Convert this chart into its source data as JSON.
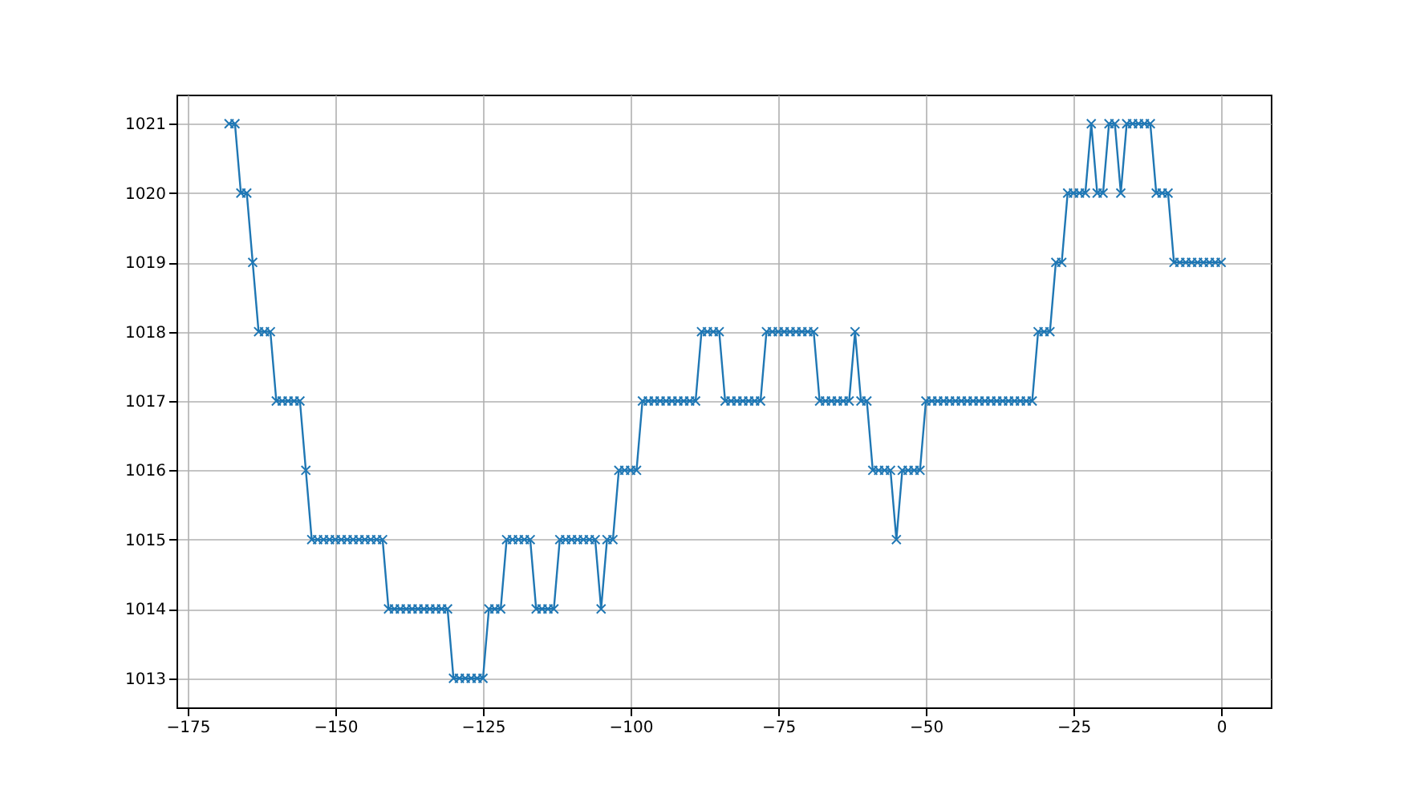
{
  "chart_data": {
    "type": "line",
    "x": [
      -168,
      -167,
      -166,
      -165,
      -164,
      -163,
      -162,
      -161,
      -160,
      -159,
      -158,
      -157,
      -156,
      -155,
      -154,
      -153,
      -152,
      -151,
      -150,
      -149,
      -148,
      -147,
      -146,
      -145,
      -144,
      -143,
      -142,
      -141,
      -140,
      -139,
      -138,
      -137,
      -136,
      -135,
      -134,
      -133,
      -132,
      -131,
      -130,
      -129,
      -128,
      -127,
      -126,
      -125,
      -124,
      -123,
      -122,
      -121,
      -120,
      -119,
      -118,
      -117,
      -116,
      -115,
      -114,
      -113,
      -112,
      -111,
      -110,
      -109,
      -108,
      -107,
      -106,
      -105,
      -104,
      -103,
      -102,
      -101,
      -100,
      -99,
      -98,
      -97,
      -96,
      -95,
      -94,
      -93,
      -92,
      -91,
      -90,
      -89,
      -88,
      -87,
      -86,
      -85,
      -84,
      -83,
      -82,
      -81,
      -80,
      -79,
      -78,
      -77,
      -76,
      -75,
      -74,
      -73,
      -72,
      -71,
      -70,
      -69,
      -68,
      -67,
      -66,
      -65,
      -64,
      -63,
      -62,
      -61,
      -60,
      -59,
      -58,
      -57,
      -56,
      -55,
      -54,
      -53,
      -52,
      -51,
      -50,
      -49,
      -48,
      -47,
      -46,
      -45,
      -44,
      -43,
      -42,
      -41,
      -40,
      -39,
      -38,
      -37,
      -36,
      -35,
      -34,
      -33,
      -32,
      -31,
      -30,
      -29,
      -28,
      -27,
      -26,
      -25,
      -24,
      -23,
      -22,
      -21,
      -20,
      -19,
      -18,
      -17,
      -16,
      -15,
      -14,
      -13,
      -12,
      -11,
      -10,
      -9,
      -8,
      -7,
      -6,
      -5,
      -4,
      -3,
      -2,
      -1,
      0
    ],
    "series": [
      {
        "color": "#1f77b4",
        "values": [
          1021,
          1021,
          1020,
          1020,
          1019,
          1018,
          1018,
          1018,
          1017,
          1017,
          1017,
          1017,
          1017,
          1016,
          1015,
          1015,
          1015,
          1015,
          1015,
          1015,
          1015,
          1015,
          1015,
          1015,
          1015,
          1015,
          1015,
          1014,
          1014,
          1014,
          1014,
          1014,
          1014,
          1014,
          1014,
          1014,
          1014,
          1014,
          1013,
          1013,
          1013,
          1013,
          1013,
          1013,
          1014,
          1014,
          1014,
          1015,
          1015,
          1015,
          1015,
          1015,
          1014,
          1014,
          1014,
          1014,
          1015,
          1015,
          1015,
          1015,
          1015,
          1015,
          1015,
          1014,
          1015,
          1015,
          1016,
          1016,
          1016,
          1016,
          1017,
          1017,
          1017,
          1017,
          1017,
          1017,
          1017,
          1017,
          1017,
          1017,
          1018,
          1018,
          1018,
          1018,
          1017,
          1017,
          1017,
          1017,
          1017,
          1017,
          1017,
          1018,
          1018,
          1018,
          1018,
          1018,
          1018,
          1018,
          1018,
          1018,
          1017,
          1017,
          1017,
          1017,
          1017,
          1017,
          1018,
          1017,
          1017,
          1016,
          1016,
          1016,
          1016,
          1015,
          1016,
          1016,
          1016,
          1016,
          1017,
          1017,
          1017,
          1017,
          1017,
          1017,
          1017,
          1017,
          1017,
          1017,
          1017,
          1017,
          1017,
          1017,
          1017,
          1017,
          1017,
          1017,
          1017,
          1018,
          1018,
          1018,
          1019,
          1019,
          1020,
          1020,
          1020,
          1020,
          1021,
          1020,
          1020,
          1021,
          1021,
          1020,
          1021,
          1021,
          1021,
          1021,
          1021,
          1020,
          1020,
          1020,
          1019,
          1019,
          1019,
          1019,
          1019,
          1019,
          1019,
          1019,
          1019
        ]
      }
    ],
    "xlim": [
      -176.9,
      8.4
    ],
    "ylim": [
      1012.58,
      1021.42
    ],
    "xticks": [
      -175,
      -150,
      -125,
      -100,
      -75,
      -50,
      -25,
      0
    ],
    "yticks": [
      1013,
      1014,
      1015,
      1016,
      1017,
      1018,
      1019,
      1020,
      1021
    ],
    "grid": true,
    "marker": "cross",
    "line_style": "solid"
  }
}
